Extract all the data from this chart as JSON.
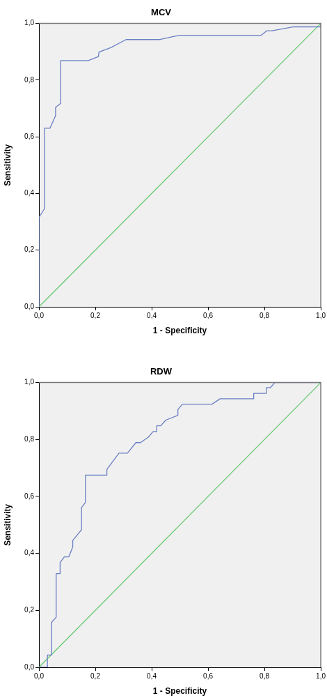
{
  "chart_data": [
    {
      "type": "line",
      "title": "MCV",
      "xlabel": "1 - Specificity",
      "ylabel": "Sensitivity",
      "xlim": [
        0,
        1
      ],
      "ylim": [
        0,
        1
      ],
      "xticks": [
        {
          "value": 0,
          "label": "0,0"
        },
        {
          "value": 0.2,
          "label": "0,2"
        },
        {
          "value": 0.4,
          "label": "0,4"
        },
        {
          "value": 0.6,
          "label": "0,6"
        },
        {
          "value": 0.8,
          "label": "0,8"
        },
        {
          "value": 1,
          "label": "1,0"
        }
      ],
      "yticks": [
        {
          "value": 0,
          "label": "0,0"
        },
        {
          "value": 0.2,
          "label": "0,2"
        },
        {
          "value": 0.4,
          "label": "0,4"
        },
        {
          "value": 0.6,
          "label": "0,6"
        },
        {
          "value": 0.8,
          "label": "0,8"
        },
        {
          "value": 1,
          "label": "1,0"
        }
      ],
      "marker": "none",
      "grid": false,
      "series": [
        {
          "color": "#6a7fc4",
          "x": [
            0,
            0,
            0.02,
            0.02,
            0.039,
            0.059,
            0.059,
            0.077,
            0.077,
            0.175,
            0.211,
            0.213,
            0.256,
            0.309,
            0.426,
            0.477,
            0.499,
            0.788,
            0.808,
            0.827,
            0.904,
            0.986,
            1,
            1
          ],
          "values": [
            0,
            0.316,
            0.347,
            0.63,
            0.63,
            0.675,
            0.704,
            0.718,
            0.869,
            0.869,
            0.883,
            0.899,
            0.915,
            0.943,
            0.943,
            0.954,
            0.958,
            0.958,
            0.974,
            0.974,
            0.988,
            0.988,
            0.988,
            1
          ]
        },
        {
          "color": "#66c86e",
          "x": [
            0,
            1
          ],
          "values": [
            0,
            1
          ]
        }
      ]
    },
    {
      "type": "line",
      "title": "RDW",
      "xlabel": "1 - Specificity",
      "ylabel": "Sensitivity",
      "xlim": [
        0,
        1
      ],
      "ylim": [
        0,
        1
      ],
      "xticks": [
        {
          "value": 0,
          "label": "0,0"
        },
        {
          "value": 0.2,
          "label": "0,2"
        },
        {
          "value": 0.4,
          "label": "0,4"
        },
        {
          "value": 0.6,
          "label": "0,6"
        },
        {
          "value": 0.8,
          "label": "0,8"
        },
        {
          "value": 1,
          "label": "1,0"
        }
      ],
      "yticks": [
        {
          "value": 0,
          "label": "0,0"
        },
        {
          "value": 0.2,
          "label": "0,2"
        },
        {
          "value": 0.4,
          "label": "0,4"
        },
        {
          "value": 0.6,
          "label": "0,6"
        },
        {
          "value": 0.8,
          "label": "0,8"
        },
        {
          "value": 1,
          "label": "1,0"
        }
      ],
      "marker": "none",
      "grid": false,
      "series": [
        {
          "color": "#6a7fc4",
          "x": [
            0,
            0.03,
            0.03,
            0.045,
            0.045,
            0.061,
            0.061,
            0.075,
            0.075,
            0.09,
            0.106,
            0.12,
            0.12,
            0.151,
            0.151,
            0.165,
            0.165,
            0.241,
            0.241,
            0.284,
            0.314,
            0.344,
            0.36,
            0.388,
            0.405,
            0.418,
            0.418,
            0.432,
            0.45,
            0.493,
            0.493,
            0.509,
            0.614,
            0.643,
            0.762,
            0.762,
            0.807,
            0.807,
            0.821,
            0.837,
            1
          ],
          "values": [
            0,
            0,
            0.043,
            0.043,
            0.158,
            0.176,
            0.329,
            0.329,
            0.368,
            0.388,
            0.388,
            0.423,
            0.446,
            0.483,
            0.561,
            0.579,
            0.675,
            0.675,
            0.695,
            0.752,
            0.752,
            0.789,
            0.789,
            0.808,
            0.828,
            0.828,
            0.848,
            0.848,
            0.868,
            0.885,
            0.905,
            0.924,
            0.924,
            0.943,
            0.943,
            0.962,
            0.962,
            0.982,
            0.982,
            1,
            1
          ]
        },
        {
          "color": "#66c86e",
          "x": [
            0,
            1
          ],
          "values": [
            0,
            1
          ]
        }
      ]
    }
  ]
}
